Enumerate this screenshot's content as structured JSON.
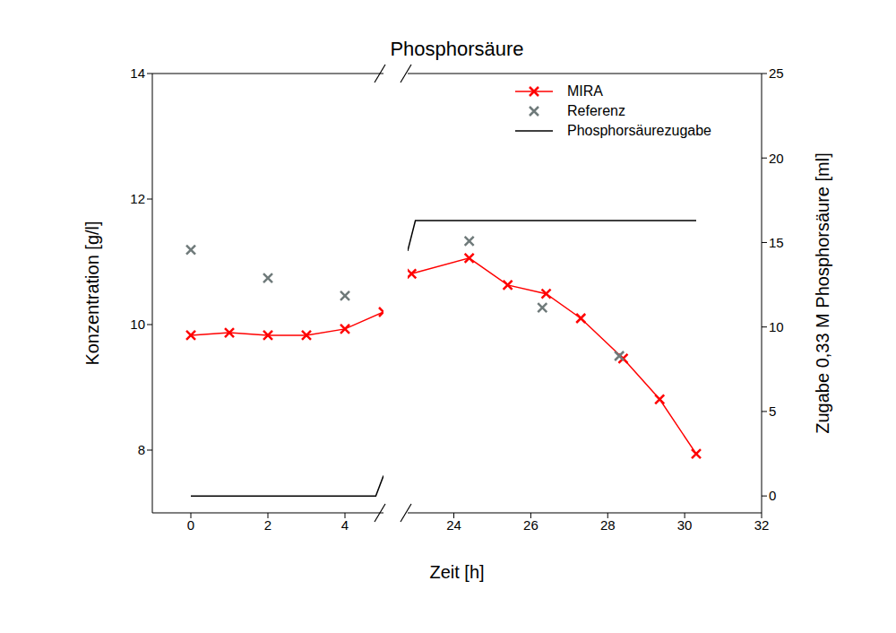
{
  "chart_data": {
    "type": "line",
    "title": "Phosphorsäure",
    "xlabel": "Zeit [h]",
    "ylabel": "Konzentration [g/l]",
    "y2label": "Zugabe 0,33 M Phosphorsäure [ml]",
    "xlim": [
      [
        -1,
        5
      ],
      [
        22.8,
        32
      ]
    ],
    "xticks": [
      0,
      2,
      4,
      24,
      26,
      28,
      30,
      32
    ],
    "ylim": [
      7,
      14
    ],
    "yticks": [
      8,
      10,
      12,
      14
    ],
    "y2lim": [
      -1,
      25
    ],
    "y2ticks": [
      0,
      5,
      10,
      15,
      20,
      25
    ],
    "legend": "upper right",
    "series": [
      {
        "name": "MIRA",
        "color": "#ff0000",
        "marker": "x",
        "line_style": "solid",
        "x": [
          0,
          1,
          2,
          3,
          4,
          5,
          22.9,
          24.4,
          25.4,
          26.4,
          27.3,
          28.4,
          29.35,
          30.3
        ],
        "values": [
          9.83,
          9.87,
          9.83,
          9.83,
          9.93,
          10.2,
          10.81,
          11.06,
          10.63,
          10.49,
          10.1,
          9.46,
          8.81,
          7.94
        ]
      },
      {
        "name": "Referenz",
        "color": "#6f7a7a",
        "marker": "x",
        "line_style": "none",
        "x": [
          0,
          2,
          4,
          24.4,
          26.3,
          28.3
        ],
        "values": [
          11.19,
          10.74,
          10.46,
          11.33,
          10.27,
          9.5
        ]
      },
      {
        "name": "Phosphorsäurezugabe",
        "color": "#000000",
        "marker": "none",
        "line_style": "solid",
        "axis": "y2",
        "x": [
          0,
          4.8,
          5,
          22.8,
          23,
          30.3
        ],
        "values": [
          0,
          0,
          1.2,
          14.5,
          16.3,
          16.3
        ]
      }
    ]
  }
}
